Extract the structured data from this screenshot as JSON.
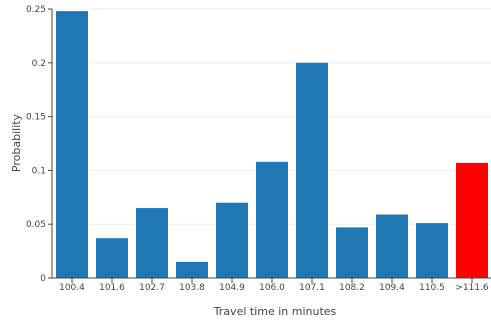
{
  "chart_data": {
    "type": "bar",
    "title": "",
    "xlabel": "Travel time in minutes",
    "ylabel": "Probability",
    "categories": [
      "100.4",
      "101.6",
      "102.7",
      "103.8",
      "104.9",
      "106.0",
      "107.1",
      "108.2",
      "109.4",
      "110.5",
      ">111.6"
    ],
    "values": [
      0.248,
      0.037,
      0.065,
      0.015,
      0.07,
      0.108,
      0.2,
      0.047,
      0.059,
      0.051,
      0.107
    ],
    "ylim": [
      0,
      0.25
    ],
    "yticks": [
      0,
      0.05,
      0.1,
      0.15,
      0.2,
      0.25
    ],
    "ytick_labels": [
      "0",
      "0.05",
      "0.1",
      "0.15",
      "0.2",
      "0.25"
    ],
    "grid": true,
    "legend": "none",
    "colors": {
      "bar": "#1f77b4",
      "highlight": "#ff0000",
      "grid": "#eeeeee",
      "axis_line": "#444444"
    },
    "highlight_index": 10
  }
}
